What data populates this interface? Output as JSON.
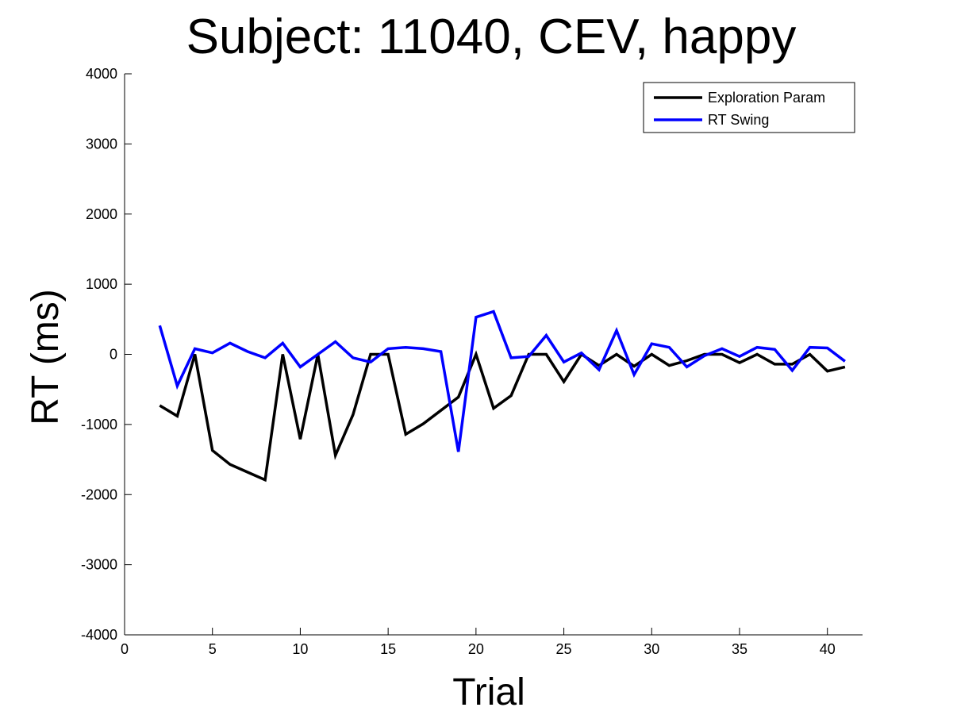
{
  "chart_data": {
    "type": "line",
    "title": "Subject: 11040, CEV, happy",
    "xlabel": "Trial",
    "ylabel": "RT (ms)",
    "xlim": [
      0,
      42
    ],
    "ylim": [
      -4000,
      4000
    ],
    "xticks": [
      0,
      5,
      10,
      15,
      20,
      25,
      30,
      35,
      40
    ],
    "yticks": [
      -4000,
      -3000,
      -2000,
      -1000,
      0,
      1000,
      2000,
      3000,
      4000
    ],
    "grid": false,
    "legend_position": "top-right",
    "x": [
      2,
      3,
      4,
      5,
      6,
      7,
      8,
      9,
      10,
      11,
      12,
      13,
      14,
      15,
      16,
      17,
      18,
      19,
      20,
      21,
      22,
      23,
      24,
      25,
      26,
      27,
      28,
      29,
      30,
      31,
      32,
      33,
      34,
      35,
      36,
      37,
      38,
      39,
      40,
      41
    ],
    "series": [
      {
        "name": "Exploration Param",
        "color": "#000000",
        "values": [
          -730,
          -880,
          0,
          -1370,
          -1570,
          -1680,
          -1790,
          0,
          -1210,
          0,
          -1440,
          -860,
          0,
          0,
          -1140,
          -990,
          -800,
          -610,
          0,
          -770,
          -590,
          0,
          0,
          -390,
          0,
          -160,
          0,
          -170,
          0,
          -160,
          -90,
          0,
          0,
          -120,
          0,
          -140,
          -140,
          0,
          -240,
          -180
        ]
      },
      {
        "name": "RT Swing",
        "color": "#0000ff",
        "values": [
          410,
          -450,
          80,
          20,
          160,
          40,
          -50,
          160,
          -180,
          0,
          180,
          -50,
          -110,
          80,
          100,
          80,
          40,
          -1390,
          530,
          610,
          -50,
          -30,
          270,
          -110,
          20,
          -220,
          340,
          -290,
          150,
          100,
          -180,
          -20,
          80,
          -30,
          100,
          70,
          -230,
          100,
          90,
          -100
        ]
      }
    ]
  }
}
